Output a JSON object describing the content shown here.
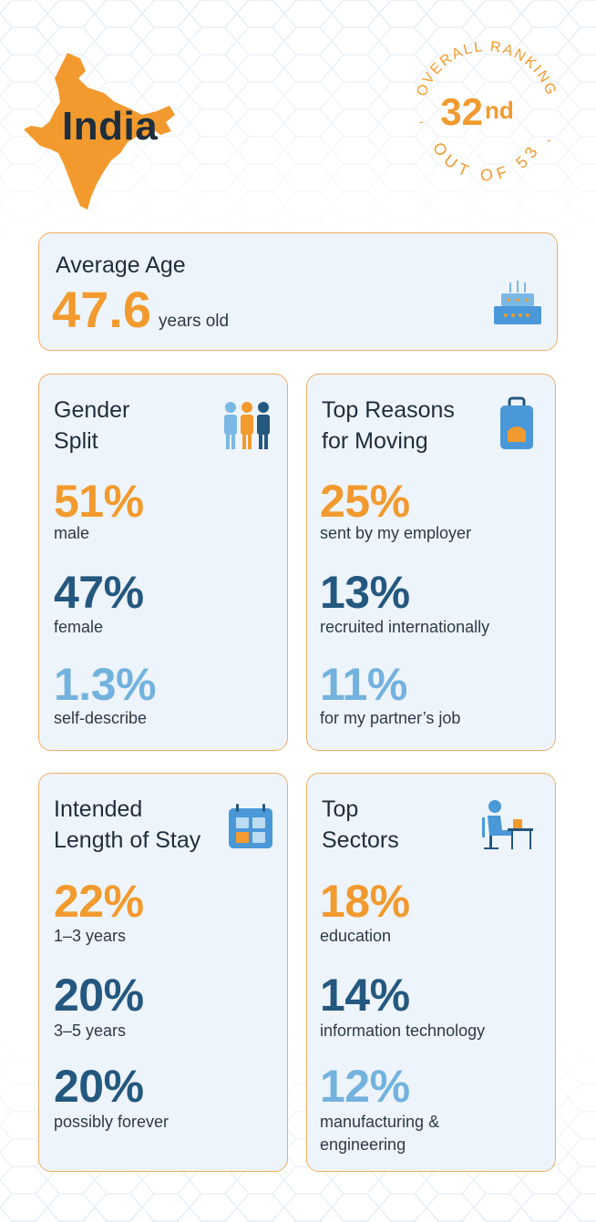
{
  "header": {
    "country": "India",
    "ranking": {
      "top_text": "OVERALL RANKING",
      "rank_number": "32",
      "rank_suffix": "nd",
      "bottom_text": "OUT OF 53"
    }
  },
  "average_age": {
    "title": "Average Age",
    "value": "47.6",
    "unit": "years old",
    "icon": "birthday-cake-icon"
  },
  "gender_split": {
    "title_lines": [
      "Gender",
      "Split"
    ],
    "icon": "people-icon",
    "stats": [
      {
        "value": "51%",
        "label": "male"
      },
      {
        "value": "47%",
        "label": "female"
      },
      {
        "value": "1.3%",
        "label": "self-describe"
      }
    ]
  },
  "top_reasons": {
    "title_lines": [
      "Top Reasons",
      "for Moving"
    ],
    "icon": "suitcase-icon",
    "stats": [
      {
        "value": "25%",
        "label": "sent by my employer"
      },
      {
        "value": "13%",
        "label": "recruited internationally"
      },
      {
        "value": "11%",
        "label": "for my partner’s job"
      }
    ]
  },
  "length_of_stay": {
    "title_lines": [
      "Intended",
      "Length of Stay"
    ],
    "icon": "calendar-icon",
    "stats": [
      {
        "value": "22%",
        "label": "1–3 years"
      },
      {
        "value": "20%",
        "label": "3–5 years"
      },
      {
        "value": "20%",
        "label": "possibly forever"
      }
    ]
  },
  "top_sectors": {
    "title_lines": [
      "Top",
      "Sectors"
    ],
    "icon": "person-at-desk-icon",
    "stats": [
      {
        "value": "18%",
        "label_lines": [
          "education"
        ]
      },
      {
        "value": "14%",
        "label_lines": [
          "information technology"
        ]
      },
      {
        "value": "12%",
        "label_lines": [
          "manufacturing &",
          "engineering"
        ]
      }
    ]
  },
  "colors": {
    "accent_orange": "#f29a2e",
    "navy": "#24587f",
    "light_blue": "#73b2de",
    "card_bg": "#eef4fb",
    "card_border": "#f0ad63",
    "text_dark": "#1e2e3d"
  }
}
